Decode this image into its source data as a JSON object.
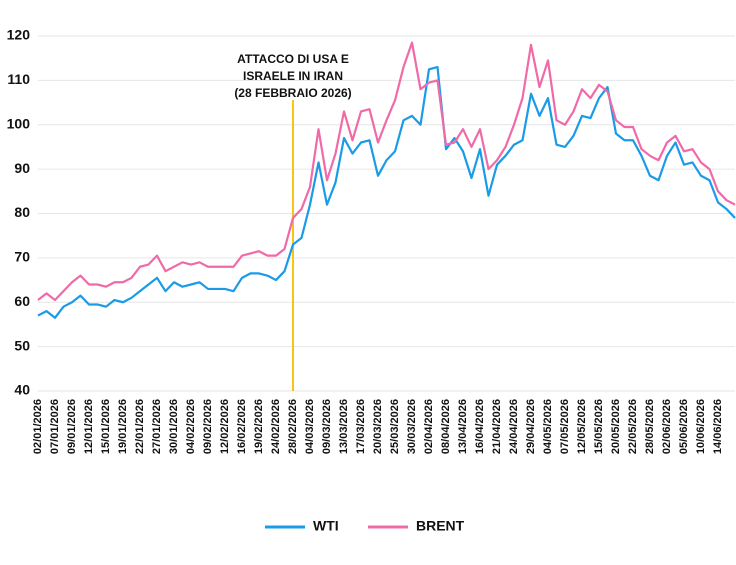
{
  "chart_data": {
    "type": "line",
    "categories": [
      "02/01/2026",
      null,
      "07/01/2026",
      null,
      "09/01/2026",
      null,
      "12/01/2026",
      null,
      "15/01/2026",
      null,
      "19/01/2026",
      null,
      "22/01/2026",
      null,
      "27/01/2026",
      null,
      "30/01/2026",
      null,
      "04/02/2026",
      null,
      "09/02/2026",
      null,
      "12/02/2026",
      null,
      "16/02/2026",
      null,
      "19/02/2026",
      null,
      "24/02/2026",
      null,
      "28/02/2026",
      null,
      "04/03/2026",
      null,
      "09/03/2026",
      null,
      "13/03/2026",
      null,
      "17/03/2026",
      null,
      "20/03/2026",
      null,
      "25/03/2026",
      null,
      "30/03/2026",
      null,
      "02/04/2026",
      null,
      "08/04/2026",
      null,
      "13/04/2026",
      null,
      "16/04/2026",
      null,
      "21/04/2026",
      null,
      "24/04/2026",
      null,
      "29/04/2026",
      null,
      "04/05/2026",
      null,
      "07/05/2026",
      null,
      "12/05/2026",
      null,
      "15/05/2026",
      null,
      "20/05/2026",
      null,
      "22/05/2026",
      null,
      "28/05/2026",
      null,
      "02/06/2026",
      null,
      "05/06/2026",
      null,
      "10/06/2026",
      null,
      "14/06/2026",
      null,
      null
    ],
    "series": [
      {
        "name": "WTI",
        "color": "#1a9be8",
        "values": [
          57,
          58,
          56.5,
          59,
          60,
          61.5,
          59.5,
          59.5,
          59,
          60.5,
          60,
          61,
          62.5,
          64,
          65.5,
          62.5,
          64.5,
          63.5,
          64,
          64.5,
          63,
          63,
          63,
          62.5,
          65.5,
          66.5,
          66.5,
          66,
          65,
          67,
          73,
          74.5,
          82,
          91.5,
          82,
          87,
          97,
          93.5,
          96,
          96.5,
          88.5,
          92,
          94,
          101,
          102,
          100,
          112.5,
          113,
          94.5,
          97,
          94,
          88,
          94.5,
          84,
          91,
          93,
          95.5,
          96.5,
          107,
          102,
          106,
          95.5,
          95,
          97.5,
          102,
          101.5,
          106,
          108.5,
          98,
          96.5,
          96.5,
          93,
          88.5,
          87.5,
          93,
          96,
          91,
          91.5,
          88.5,
          87.5,
          82.5,
          81,
          79
        ]
      },
      {
        "name": "BRENT",
        "color": "#f06aa8",
        "values": [
          60.5,
          62,
          60.5,
          62.5,
          64.5,
          66,
          64,
          64,
          63.5,
          64.5,
          64.5,
          65.5,
          68,
          68.5,
          70.5,
          67,
          68,
          69,
          68.5,
          69,
          68,
          68,
          68,
          68,
          70.5,
          71,
          71.5,
          70.5,
          70.5,
          72,
          79,
          81,
          86,
          99,
          87.5,
          93.5,
          103,
          96.5,
          103,
          103.5,
          96,
          101,
          105.5,
          113,
          118.5,
          108,
          109.5,
          110,
          95.5,
          96,
          99,
          95,
          99,
          90,
          92,
          95,
          100,
          106,
          118,
          108.5,
          114.5,
          101,
          100,
          103,
          108,
          106,
          109,
          107.5,
          101,
          99.5,
          99.5,
          94.5,
          93,
          92,
          96,
          97.5,
          94,
          94.5,
          91.5,
          90,
          85,
          83,
          82
        ]
      }
    ],
    "ylim": [
      40,
      120
    ],
    "yticks": [
      40,
      50,
      60,
      70,
      80,
      90,
      100,
      110,
      120
    ],
    "grid": true,
    "annotation": {
      "lines": [
        "ATTACCO DI USA E",
        "ISRAELE IN IRAN",
        "(28 FEBBRAIO 2026)"
      ],
      "x": "28/02/2026",
      "color": "#f5c518"
    },
    "legend": "bottom"
  }
}
